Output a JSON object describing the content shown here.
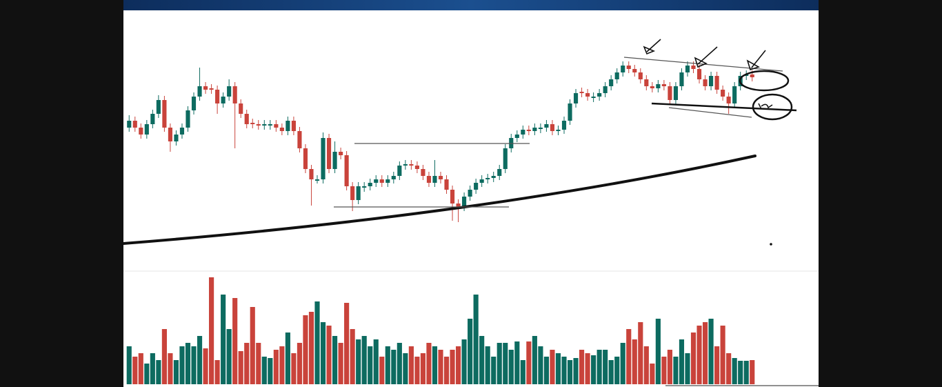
{
  "chart_data": {
    "type": "candlestick",
    "up_color": "#0d6b60",
    "down_color": "#c9433b",
    "ylim": [
      0,
      375
    ],
    "volume_ylim": [
      0,
      160
    ],
    "open": [
      205,
      215,
      205,
      195,
      210,
      225,
      245,
      205,
      185,
      195,
      205,
      230,
      250,
      265,
      262,
      260,
      240,
      250,
      265,
      240,
      225,
      212,
      210,
      208,
      208,
      210,
      205,
      200,
      215,
      200,
      175,
      145,
      128,
      130,
      190,
      145,
      170,
      165,
      120,
      100,
      118,
      120,
      125,
      130,
      125,
      130,
      135,
      150,
      152,
      150,
      145,
      135,
      125,
      135,
      130,
      115,
      95,
      90,
      105,
      115,
      125,
      130,
      132,
      135,
      145,
      175,
      190,
      195,
      202,
      200,
      203,
      205,
      210,
      200,
      202,
      215,
      240,
      257,
      255,
      248,
      250,
      255,
      265,
      275,
      285,
      295,
      290,
      285,
      275,
      265,
      262,
      268,
      265,
      245,
      265,
      285,
      295,
      290,
      275,
      265,
      280,
      260,
      250,
      240,
      265,
      280,
      282
    ],
    "high": [
      223,
      221,
      211,
      216,
      231,
      252,
      251,
      211,
      201,
      211,
      236,
      256,
      292,
      271,
      268,
      266,
      256,
      275,
      271,
      246,
      231,
      218,
      216,
      216,
      216,
      216,
      211,
      221,
      221,
      206,
      181,
      151,
      136,
      198,
      196,
      185,
      176,
      171,
      126,
      126,
      126,
      131,
      136,
      136,
      136,
      141,
      156,
      158,
      158,
      156,
      151,
      141,
      158,
      141,
      136,
      121,
      101,
      111,
      121,
      131,
      136,
      138,
      141,
      151,
      181,
      196,
      201,
      208,
      208,
      211,
      211,
      216,
      216,
      208,
      221,
      246,
      261,
      263,
      261,
      256,
      261,
      271,
      281,
      291,
      301,
      301,
      296,
      291,
      281,
      271,
      274,
      274,
      271,
      271,
      291,
      301,
      301,
      296,
      281,
      286,
      286,
      266,
      256,
      271,
      286,
      288,
      288
    ],
    "low": [
      199,
      199,
      189,
      189,
      204,
      219,
      199,
      170,
      179,
      189,
      199,
      224,
      244,
      254,
      254,
      225,
      234,
      244,
      175,
      219,
      204,
      204,
      202,
      202,
      202,
      199,
      194,
      194,
      194,
      169,
      139,
      92,
      124,
      124,
      139,
      139,
      159,
      114,
      84,
      94,
      112,
      114,
      119,
      119,
      119,
      124,
      129,
      144,
      144,
      139,
      129,
      119,
      119,
      124,
      109,
      70,
      68,
      84,
      99,
      109,
      119,
      124,
      126,
      129,
      139,
      169,
      184,
      189,
      194,
      194,
      197,
      199,
      194,
      194,
      196,
      209,
      234,
      249,
      244,
      242,
      244,
      249,
      259,
      269,
      279,
      284,
      279,
      269,
      259,
      256,
      256,
      259,
      239,
      239,
      259,
      279,
      284,
      269,
      259,
      259,
      254,
      244,
      225,
      234,
      259,
      274,
      272
    ],
    "close": [
      215,
      205,
      195,
      210,
      225,
      245,
      205,
      185,
      195,
      205,
      230,
      250,
      265,
      260,
      260,
      240,
      250,
      265,
      240,
      225,
      210,
      210,
      208,
      210,
      210,
      205,
      200,
      215,
      200,
      175,
      145,
      130,
      130,
      190,
      145,
      170,
      165,
      120,
      100,
      120,
      120,
      125,
      130,
      125,
      130,
      135,
      150,
      152,
      150,
      145,
      135,
      125,
      135,
      130,
      115,
      95,
      90,
      105,
      115,
      125,
      130,
      132,
      135,
      145,
      175,
      190,
      195,
      202,
      200,
      205,
      205,
      210,
      200,
      202,
      215,
      240,
      255,
      255,
      250,
      250,
      255,
      265,
      275,
      285,
      295,
      290,
      285,
      275,
      265,
      262,
      268,
      265,
      245,
      265,
      285,
      295,
      290,
      275,
      265,
      280,
      260,
      250,
      240,
      265,
      280,
      282,
      278
    ],
    "volume": [
      55,
      40,
      45,
      30,
      45,
      35,
      80,
      45,
      35,
      55,
      60,
      55,
      70,
      52,
      155,
      35,
      130,
      80,
      125,
      48,
      60,
      112,
      60,
      40,
      38,
      50,
      55,
      75,
      45,
      60,
      100,
      105,
      120,
      90,
      85,
      70,
      60,
      118,
      80,
      65,
      70,
      55,
      65,
      40,
      55,
      50,
      60,
      45,
      55,
      40,
      45,
      60,
      55,
      50,
      40,
      50,
      55,
      65,
      95,
      130,
      70,
      55,
      40,
      60,
      60,
      50,
      62,
      35,
      62,
      70,
      55,
      40,
      50,
      45,
      40,
      35,
      38,
      50,
      45,
      42,
      50,
      50,
      35,
      40,
      60,
      80,
      65,
      90,
      55,
      30,
      95,
      40,
      50,
      40,
      65,
      45,
      75,
      85,
      90,
      95,
      55,
      85,
      45,
      38,
      34,
      34,
      35
    ]
  }
}
